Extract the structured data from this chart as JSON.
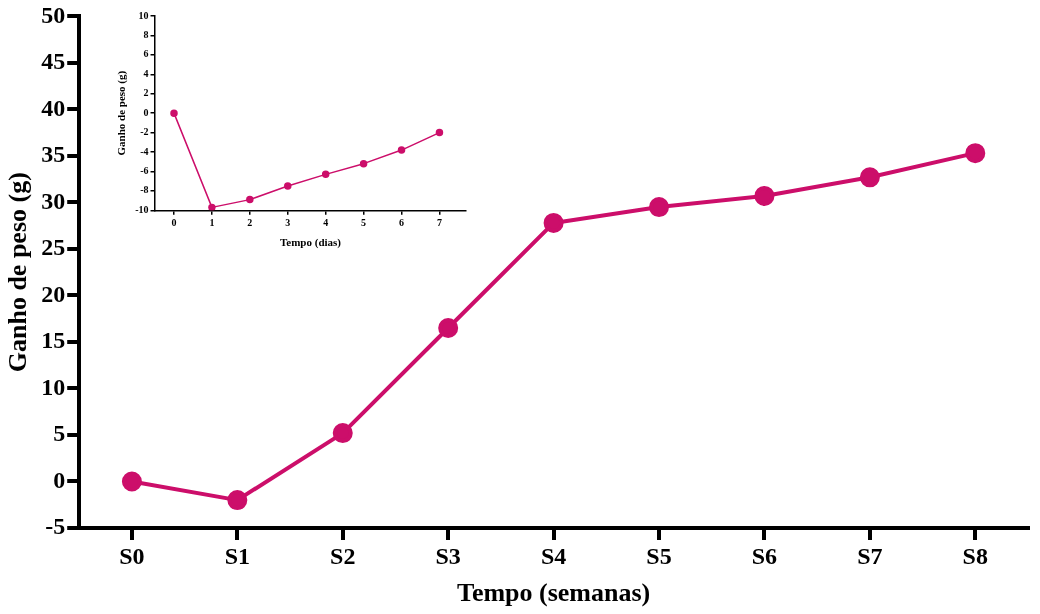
{
  "chart_data": [
    {
      "type": "line",
      "xlabel": "Tempo (semanas)",
      "ylabel": "Ganho de peso (g)",
      "categories": [
        "S0",
        "S1",
        "S2",
        "S3",
        "S4",
        "S5",
        "S6",
        "S7",
        "S8"
      ],
      "series": [
        {
          "color": "#cc0e6a",
          "values": [
            0,
            -2,
            5.2,
            16.5,
            27.8,
            29.5,
            30.7,
            32.7,
            35.3
          ]
        }
      ],
      "ylim": [
        -5,
        50
      ],
      "yticks": [
        -5,
        0,
        5,
        10,
        15,
        20,
        25,
        30,
        35,
        40,
        45,
        50
      ],
      "grid": false,
      "legend": false,
      "marker": "circle",
      "line_style": "solid"
    },
    {
      "type": "line",
      "xlabel": "Tempo (dias)",
      "ylabel": "Ganho de peso (g)",
      "x": [
        0,
        1,
        2,
        3,
        4,
        5,
        6,
        7
      ],
      "series": [
        {
          "color": "#cc0e6a",
          "values": [
            0,
            -9.7,
            -8.9,
            -7.5,
            -6.3,
            -5.2,
            -3.8,
            -2.0
          ]
        }
      ],
      "xlim": [
        -0.5,
        7.7
      ],
      "xticks": [
        0,
        1,
        2,
        3,
        4,
        5,
        6,
        7
      ],
      "ylim": [
        -10,
        10
      ],
      "yticks": [
        -10,
        -8,
        -6,
        -4,
        -2,
        0,
        2,
        4,
        6,
        8,
        10
      ],
      "grid": false,
      "legend": false,
      "marker": "circle",
      "line_style": "solid"
    }
  ]
}
